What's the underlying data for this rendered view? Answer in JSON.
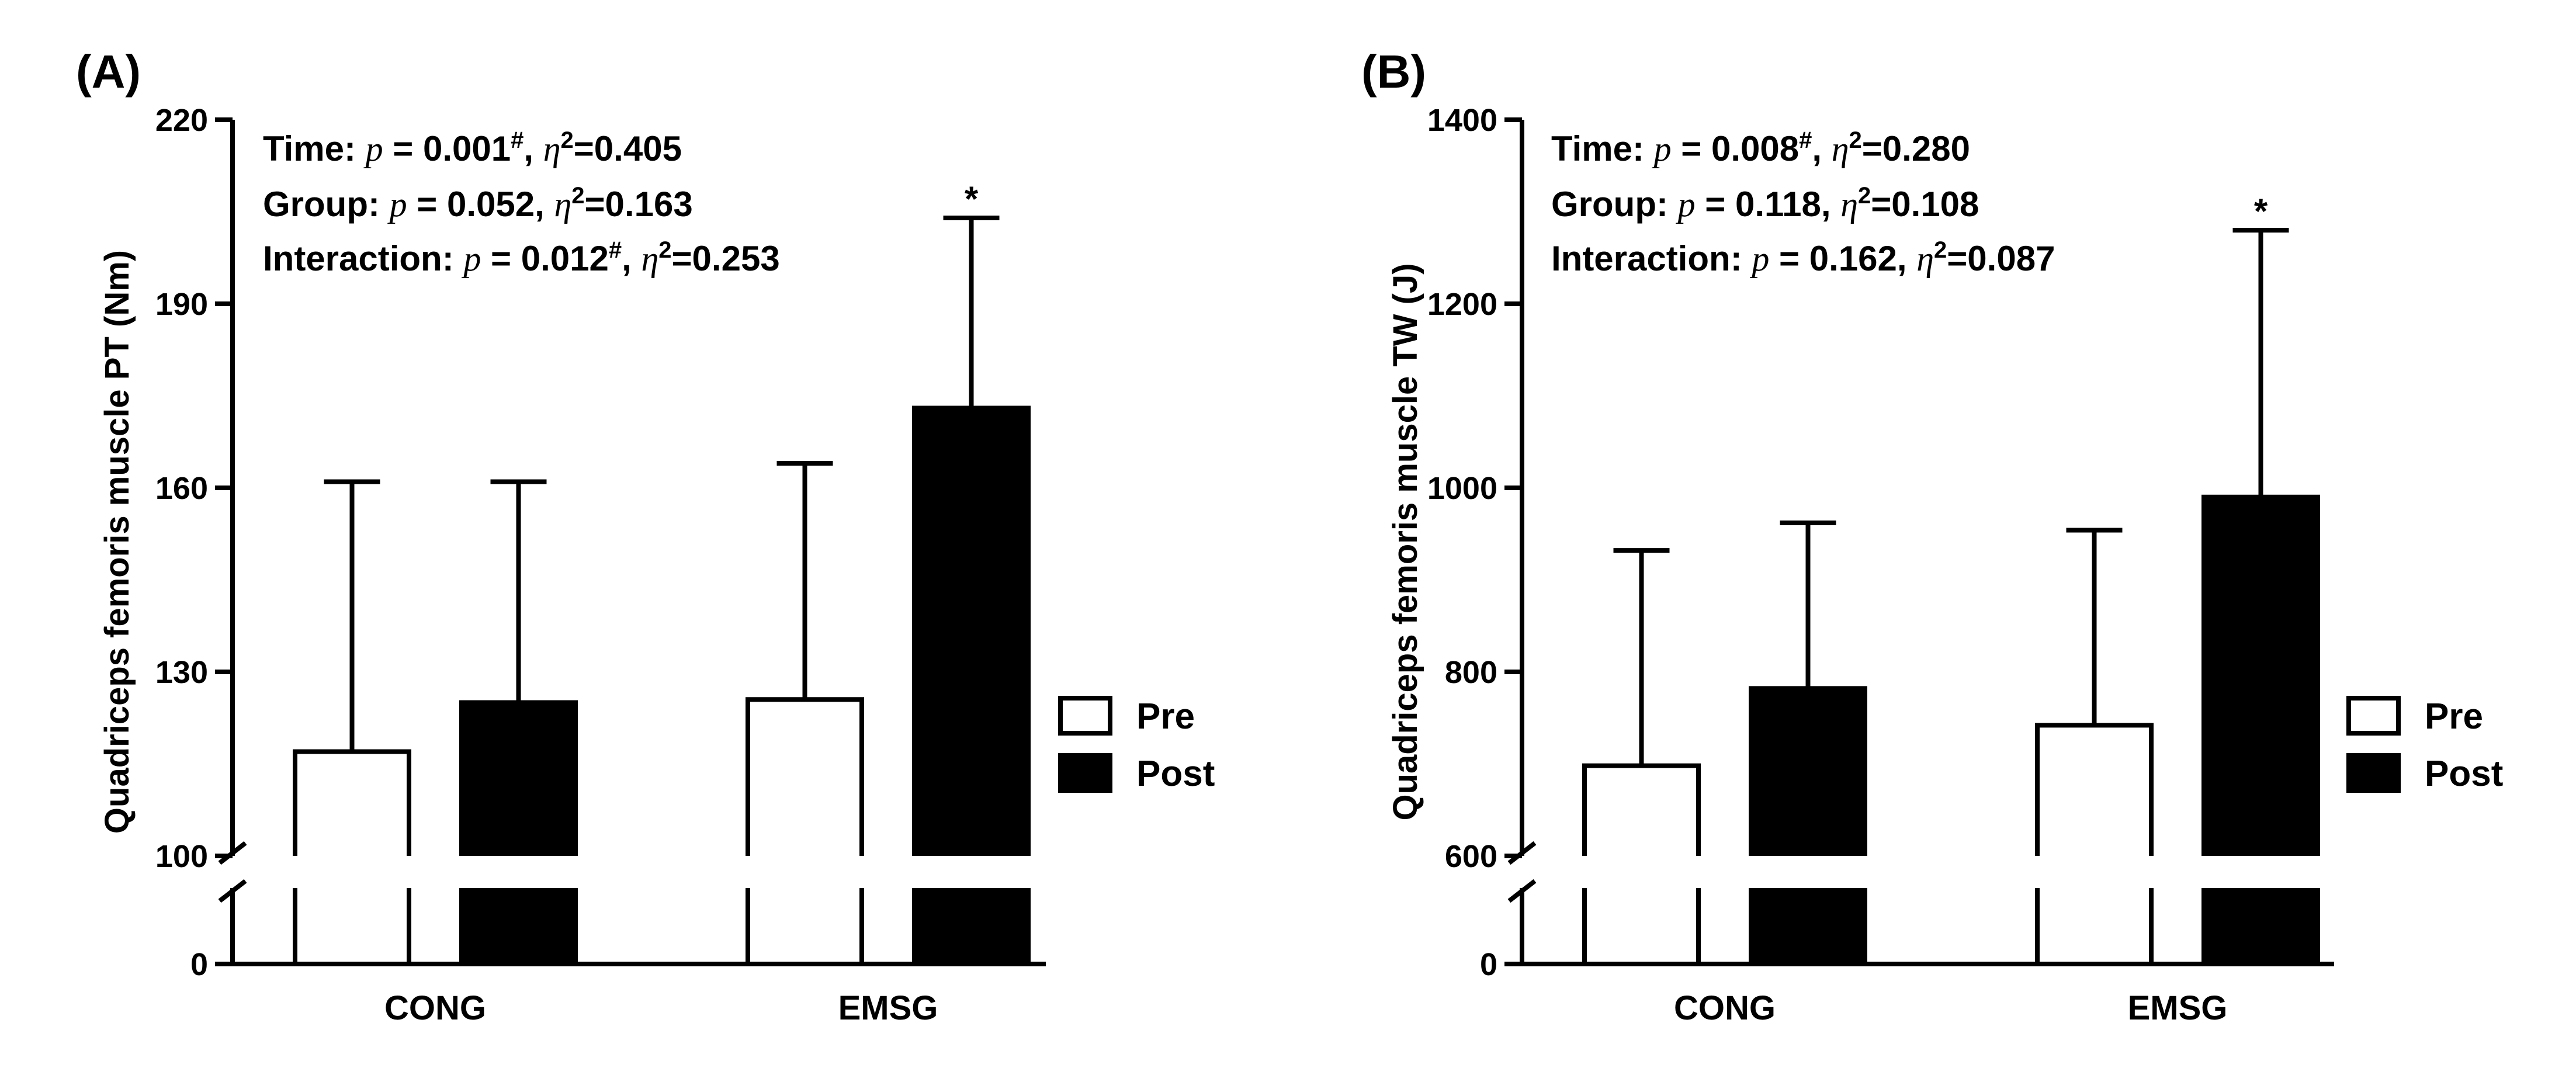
{
  "chart_data": [
    {
      "type": "bar",
      "panel": "(A)",
      "ylabel": "Quadriceps femoris muscle PT (Nm)",
      "xlabel": "",
      "categories": [
        "CONG",
        "EMSG"
      ],
      "series": [
        {
          "name": "Pre",
          "values": [
            117,
            125.5
          ],
          "errors": [
            44,
            38.5
          ],
          "style": "open"
        },
        {
          "name": "Post",
          "values": [
            125,
            173
          ],
          "errors": [
            36,
            31
          ],
          "style": "filled"
        }
      ],
      "axis_break": true,
      "lower_segment": {
        "ylim": [
          0,
          6
        ],
        "ticks": [
          "0"
        ]
      },
      "ylim": [
        100,
        220
      ],
      "yticks": [
        "100",
        "130",
        "160",
        "190",
        "220"
      ],
      "significance": [
        {
          "category": "EMSG",
          "series": "Post",
          "mark": "*"
        }
      ],
      "annotations": [
        [
          {
            "t": "Time: "
          },
          {
            "t": "p",
            "i": true
          },
          {
            "t": " = 0.001"
          },
          {
            "t": "#",
            "sup": true
          },
          {
            "t": ", "
          },
          {
            "t": "η",
            "i": true
          },
          {
            "t": "2",
            "sup": true
          },
          {
            "t": "=0.405"
          }
        ],
        [
          {
            "t": "Group: "
          },
          {
            "t": "p",
            "i": true
          },
          {
            "t": " = 0.052, "
          },
          {
            "t": "η",
            "i": true
          },
          {
            "t": "2",
            "sup": true
          },
          {
            "t": "=0.163"
          }
        ],
        [
          {
            "t": "Interaction: "
          },
          {
            "t": "p",
            "i": true
          },
          {
            "t": " = 0.012"
          },
          {
            "t": "#",
            "sup": true
          },
          {
            "t": ", "
          },
          {
            "t": "η",
            "i": true
          },
          {
            "t": "2",
            "sup": true
          },
          {
            "t": "=0.253"
          }
        ]
      ],
      "legend": {
        "position": "right",
        "entries": [
          "Pre",
          "Post"
        ]
      }
    },
    {
      "type": "bar",
      "panel": "(B)",
      "ylabel": "Quadriceps femoris muscle TW (J)",
      "xlabel": "",
      "categories": [
        "CONG",
        "EMSG"
      ],
      "series": [
        {
          "name": "Pre",
          "values": [
            698,
            742
          ],
          "errors": [
            234,
            212
          ],
          "style": "open"
        },
        {
          "name": "Post",
          "values": [
            782,
            990
          ],
          "errors": [
            180,
            290
          ],
          "style": "filled"
        }
      ],
      "axis_break": true,
      "lower_segment": {
        "ylim": [
          0,
          6
        ],
        "ticks": [
          "0"
        ]
      },
      "ylim": [
        600,
        1400
      ],
      "yticks": [
        "600",
        "800",
        "1000",
        "1200",
        "1400"
      ],
      "significance": [
        {
          "category": "EMSG",
          "series": "Post",
          "mark": "*"
        }
      ],
      "annotations": [
        [
          {
            "t": "Time: "
          },
          {
            "t": "p",
            "i": true
          },
          {
            "t": " = 0.008"
          },
          {
            "t": "#",
            "sup": true
          },
          {
            "t": ", "
          },
          {
            "t": "η",
            "i": true
          },
          {
            "t": "2",
            "sup": true
          },
          {
            "t": "=0.280"
          }
        ],
        [
          {
            "t": "Group: "
          },
          {
            "t": "p",
            "i": true
          },
          {
            "t": " = 0.118, "
          },
          {
            "t": "η",
            "i": true
          },
          {
            "t": "2",
            "sup": true
          },
          {
            "t": "=0.108"
          }
        ],
        [
          {
            "t": "Interaction: "
          },
          {
            "t": "p",
            "i": true
          },
          {
            "t": " = 0.162, "
          },
          {
            "t": "η",
            "i": true
          },
          {
            "t": "2",
            "sup": true
          },
          {
            "t": "=0.087"
          }
        ]
      ],
      "legend": {
        "position": "right",
        "entries": [
          "Pre",
          "Post"
        ]
      }
    }
  ]
}
